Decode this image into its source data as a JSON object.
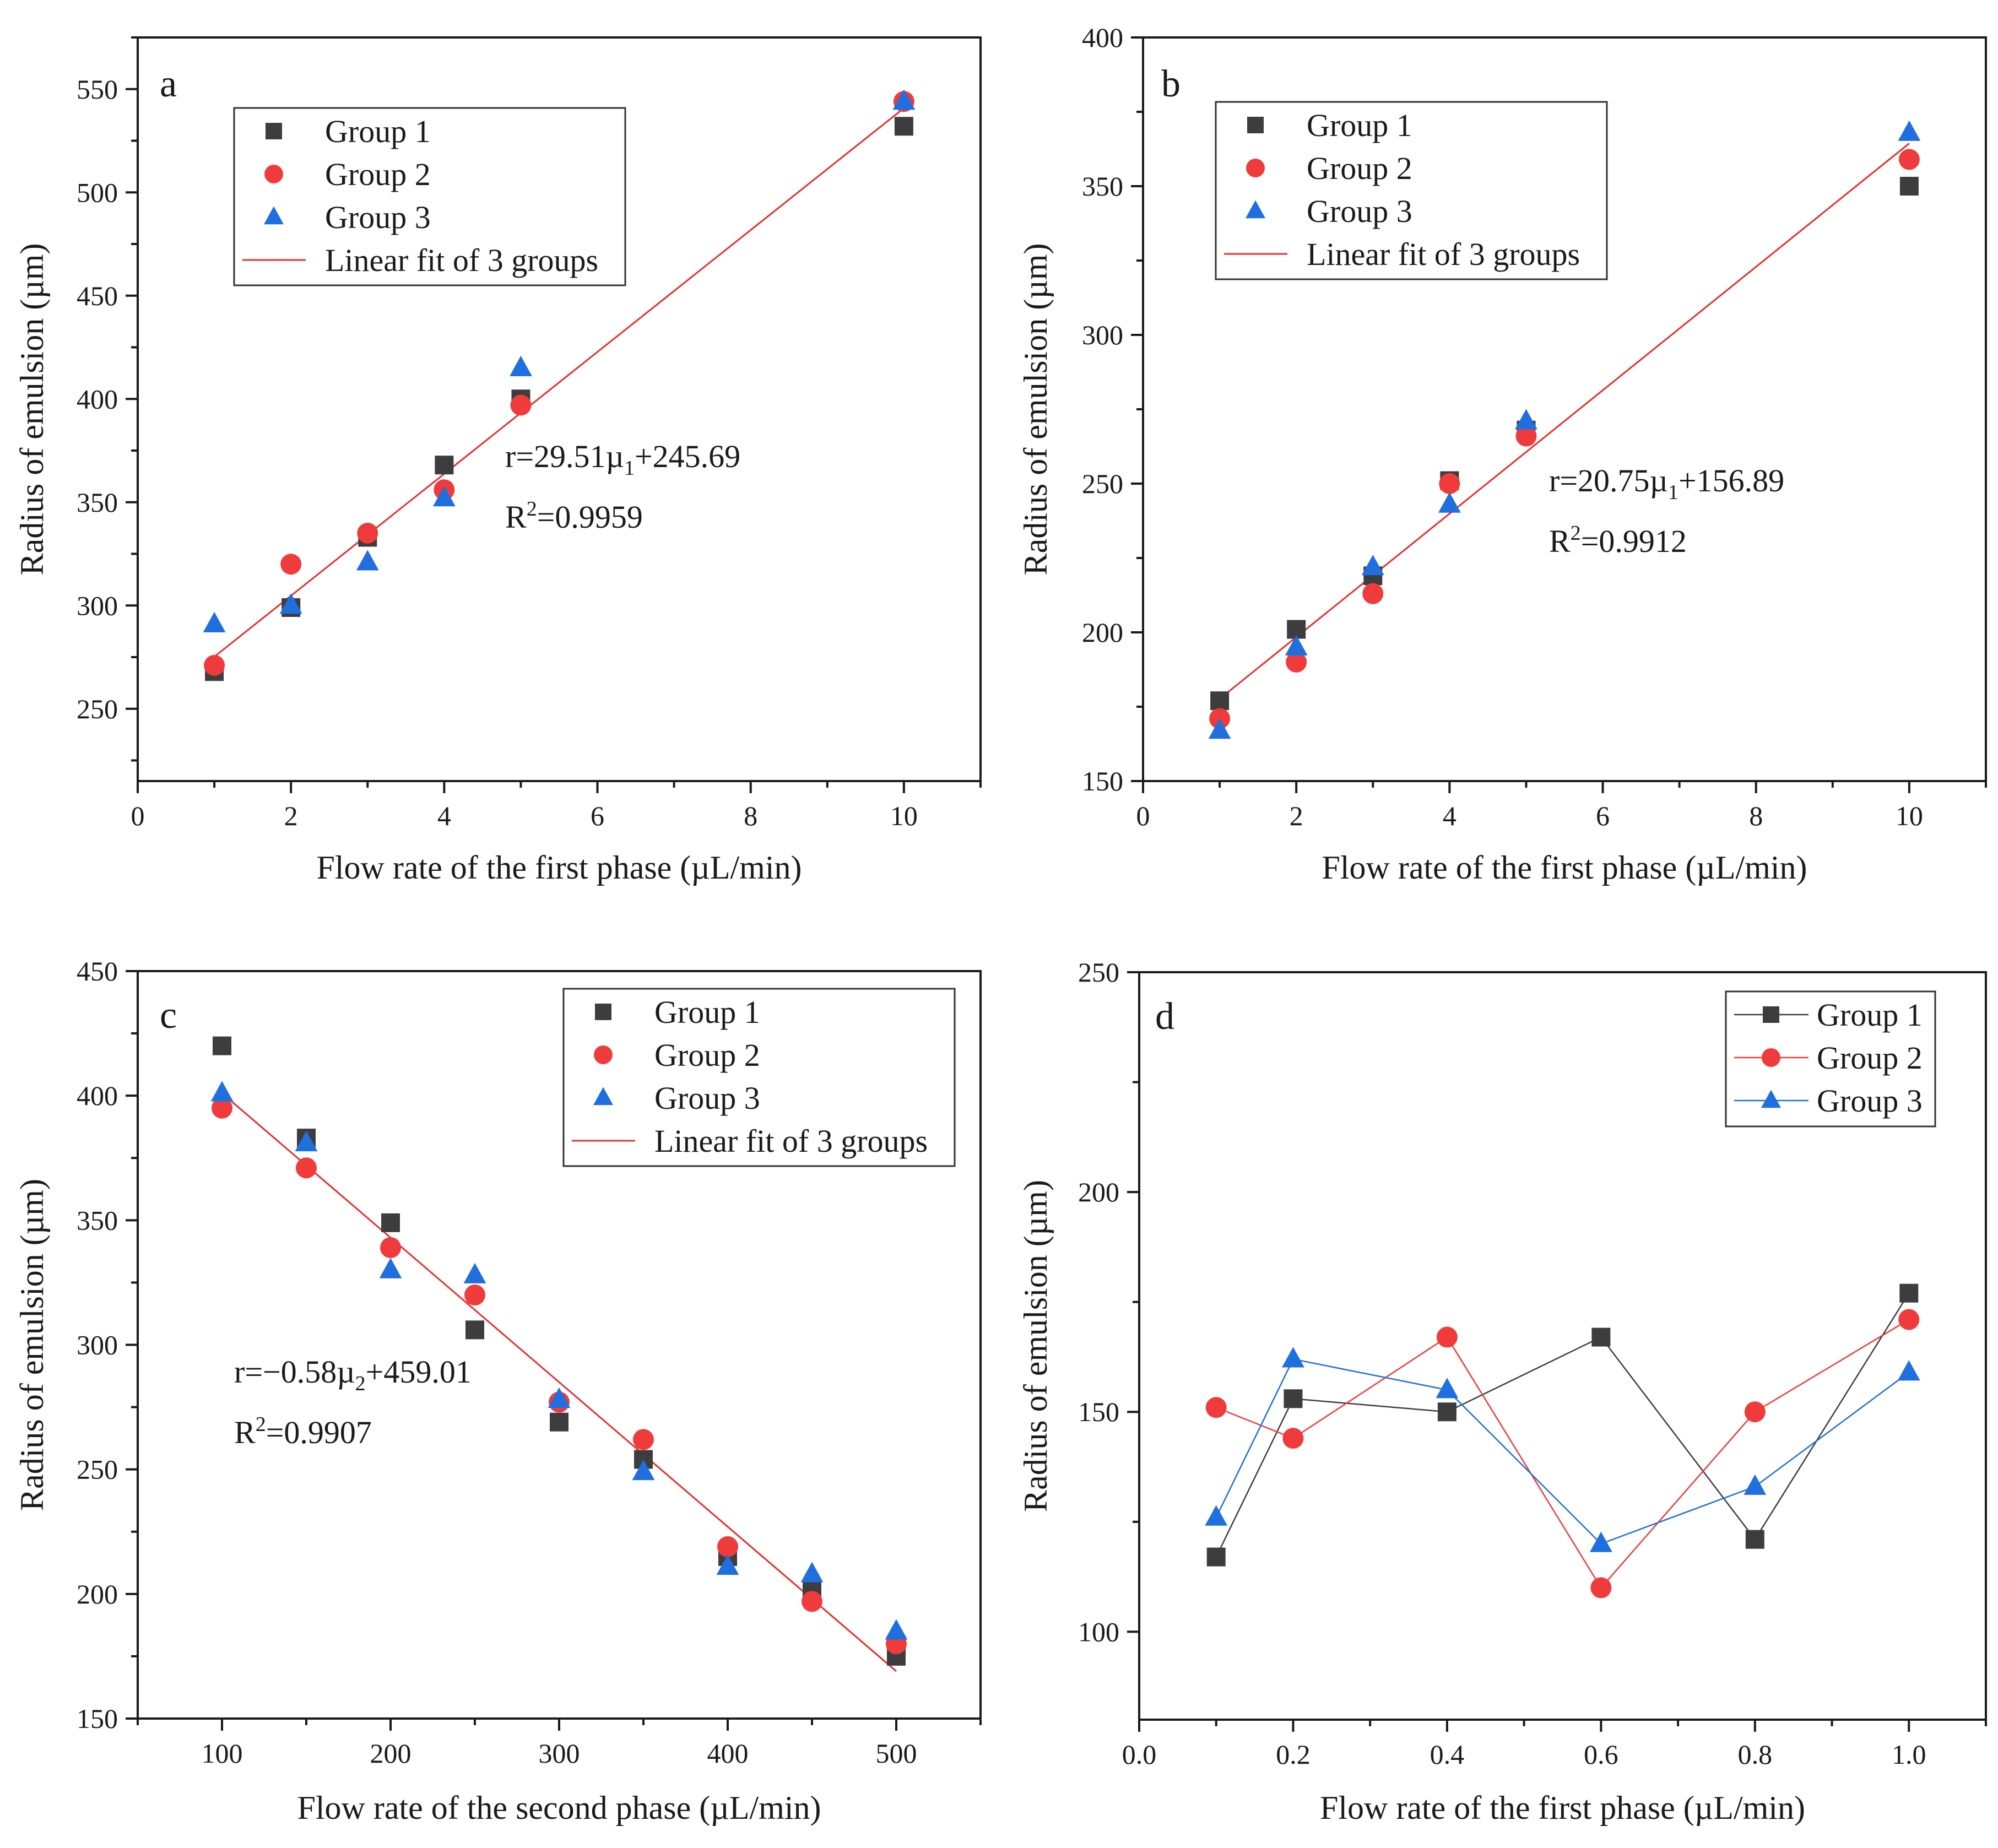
{
  "colors": {
    "group1": "#3d3d3d",
    "group2": "#ef3b3b",
    "group3": "#1f6fde",
    "fit": "#e8302f",
    "axis": "#1a1a1a"
  },
  "chart_data": [
    {
      "panel": "a",
      "type": "scatter",
      "xlabel": "Flow rate of the first phase (µL/min)",
      "ylabel": "Radius of emulsion (µm)",
      "xlim": [
        0,
        11
      ],
      "ylim": [
        215,
        575
      ],
      "xticks": [
        0,
        2,
        4,
        6,
        8,
        10
      ],
      "xtick_labels": [
        "0",
        "2",
        "4",
        "6",
        "8",
        "10"
      ],
      "yticks": [
        250,
        300,
        350,
        400,
        450,
        500,
        550
      ],
      "ytick_labels": [
        "250",
        "300",
        "350",
        "400",
        "450",
        "500",
        "550"
      ],
      "legend_position": "top-left",
      "series": [
        {
          "name": "Group 1",
          "marker": "square",
          "x": [
            1,
            2,
            3,
            4,
            5,
            10
          ],
          "y": [
            268,
            299,
            333,
            368,
            400,
            532
          ]
        },
        {
          "name": "Group 2",
          "marker": "circle",
          "x": [
            1,
            2,
            3,
            4,
            5,
            10
          ],
          "y": [
            271,
            320,
            335,
            356,
            397,
            544
          ]
        },
        {
          "name": "Group 3",
          "marker": "triangle",
          "x": [
            1,
            2,
            3,
            4,
            5,
            10
          ],
          "y": [
            291,
            300,
            321,
            352,
            415,
            544
          ]
        }
      ],
      "fit": {
        "name": "Linear fit of 3 groups",
        "x": [
          1,
          10
        ],
        "y": [
          275.2,
          540.79
        ]
      },
      "equation_parts": [
        "r=29.51µ",
        "1",
        "+245.69"
      ],
      "r2_parts": [
        "R",
        "2",
        "=0.9959"
      ]
    },
    {
      "panel": "b",
      "type": "scatter",
      "xlabel": "Flow rate of the first phase (µL/min)",
      "ylabel": "Radius of emulsion (µm)",
      "xlim": [
        0,
        11
      ],
      "ylim": [
        150,
        400
      ],
      "xticks": [
        0,
        2,
        4,
        6,
        8,
        10
      ],
      "xtick_labels": [
        "0",
        "2",
        "4",
        "6",
        "8",
        "10"
      ],
      "yticks": [
        150,
        200,
        250,
        300,
        350,
        400
      ],
      "ytick_labels": [
        "150",
        "200",
        "250",
        "300",
        "350",
        "400"
      ],
      "legend_position": "top-left",
      "series": [
        {
          "name": "Group 1",
          "marker": "square",
          "x": [
            1,
            2,
            3,
            4,
            5,
            10
          ],
          "y": [
            177,
            201,
            219,
            251,
            268,
            350
          ]
        },
        {
          "name": "Group 2",
          "marker": "circle",
          "x": [
            1,
            2,
            3,
            4,
            5,
            10
          ],
          "y": [
            171,
            190,
            213,
            250,
            266,
            359
          ]
        },
        {
          "name": "Group 3",
          "marker": "triangle",
          "x": [
            1,
            2,
            3,
            4,
            5,
            10
          ],
          "y": [
            167,
            195,
            222,
            243,
            271,
            368
          ]
        }
      ],
      "fit": {
        "name": "Linear fit of 3 groups",
        "x": [
          1,
          10
        ],
        "y": [
          177.64,
          364.39
        ]
      },
      "equation_parts": [
        "r=20.75µ",
        "1",
        "+156.89"
      ],
      "r2_parts": [
        "R",
        "2",
        "=0.9912"
      ]
    },
    {
      "panel": "c",
      "type": "scatter",
      "xlabel": "Flow rate of the second phase (µL/min)",
      "ylabel": "Radius of emulsion (µm)",
      "xlim": [
        50,
        550
      ],
      "ylim": [
        150,
        450
      ],
      "xticks": [
        100,
        200,
        300,
        400,
        500
      ],
      "xtick_labels": [
        "100",
        "200",
        "300",
        "400",
        "500"
      ],
      "yticks": [
        150,
        200,
        250,
        300,
        350,
        400,
        450
      ],
      "ytick_labels": [
        "150",
        "200",
        "250",
        "300",
        "350",
        "400",
        "450"
      ],
      "legend_position": "top-right",
      "series": [
        {
          "name": "Group 1",
          "marker": "square",
          "x": [
            100,
            150,
            200,
            250,
            300,
            350,
            400,
            450,
            500
          ],
          "y": [
            420,
            383,
            349,
            306,
            269,
            254,
            215,
            202,
            175
          ]
        },
        {
          "name": "Group 2",
          "marker": "circle",
          "x": [
            100,
            150,
            200,
            250,
            300,
            350,
            400,
            450,
            500
          ],
          "y": [
            395,
            371,
            339,
            320,
            277,
            262,
            219,
            197,
            180
          ]
        },
        {
          "name": "Group 3",
          "marker": "triangle",
          "x": [
            100,
            150,
            200,
            250,
            300,
            350,
            400,
            450,
            500
          ],
          "y": [
            401,
            381,
            330,
            328,
            278,
            249,
            211,
            208,
            185
          ]
        }
      ],
      "fit": {
        "name": "Linear fit of 3 groups",
        "x": [
          100,
          500
        ],
        "y": [
          401,
          169
        ]
      },
      "equation_parts": [
        "r=−0.58µ",
        "2",
        "+459.01"
      ],
      "r2_parts": [
        "R",
        "2",
        "=0.9907"
      ]
    },
    {
      "panel": "d",
      "type": "line",
      "xlabel": "Flow rate of the first phase (µL/min)",
      "ylabel": "Radius of emulsion (µm)",
      "xlim": [
        0.0,
        1.1
      ],
      "ylim": [
        80,
        250
      ],
      "xticks": [
        0.0,
        0.2,
        0.4,
        0.6,
        0.8,
        1.0
      ],
      "xtick_labels": [
        "0.0",
        "0.2",
        "0.4",
        "0.6",
        "0.8",
        "1.0"
      ],
      "yticks": [
        100,
        150,
        200,
        250
      ],
      "ytick_labels": [
        "100",
        "150",
        "200",
        "250"
      ],
      "legend_position": "top-right",
      "series": [
        {
          "name": "Group 1",
          "marker": "square",
          "x": [
            0.1,
            0.2,
            0.4,
            0.6,
            0.8,
            1.0
          ],
          "y": [
            117,
            153,
            150,
            167,
            121,
            177
          ]
        },
        {
          "name": "Group 2",
          "marker": "circle",
          "x": [
            0.1,
            0.2,
            0.4,
            0.6,
            0.8,
            1.0
          ],
          "y": [
            151,
            144,
            167,
            110,
            150,
            171
          ]
        },
        {
          "name": "Group 3",
          "marker": "triangle",
          "x": [
            0.1,
            0.2,
            0.4,
            0.6,
            0.8,
            1.0
          ],
          "y": [
            126,
            162,
            155,
            120,
            133,
            159
          ]
        }
      ]
    }
  ]
}
